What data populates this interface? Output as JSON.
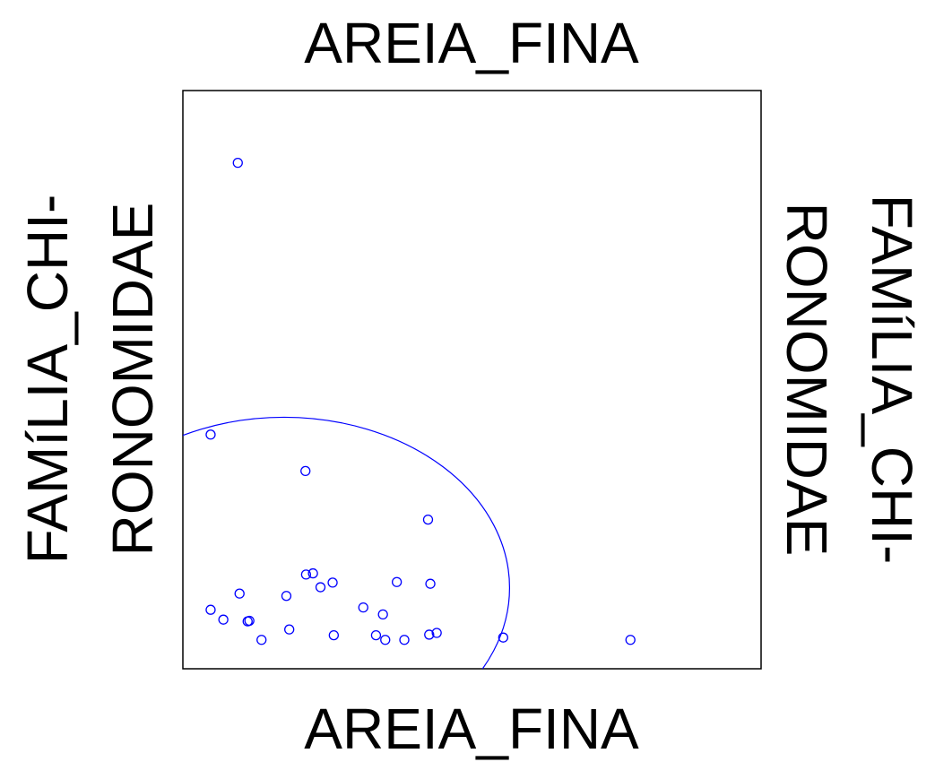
{
  "chart_data": {
    "type": "scatter",
    "title_top": "AREIA_FINA",
    "xlabel": "AREIA_FINA",
    "ylabel_left": [
      "FAMíLIA_CHI-",
      "RONOMIDAE"
    ],
    "ylabel_right": [
      "FAMíLIA_CHI-",
      "RONOMIDAE"
    ],
    "xlim": [
      0,
      1
    ],
    "ylim": [
      0,
      1
    ],
    "axes_ticks": false,
    "grid": false,
    "point_color": "#0000ff",
    "ellipse_color": "#0000ff",
    "points": [
      {
        "x": 0.095,
        "y": 0.875
      },
      {
        "x": 0.048,
        "y": 0.405
      },
      {
        "x": 0.212,
        "y": 0.342
      },
      {
        "x": 0.424,
        "y": 0.258
      },
      {
        "x": 0.213,
        "y": 0.163
      },
      {
        "x": 0.225,
        "y": 0.165
      },
      {
        "x": 0.259,
        "y": 0.149
      },
      {
        "x": 0.238,
        "y": 0.141
      },
      {
        "x": 0.37,
        "y": 0.15
      },
      {
        "x": 0.428,
        "y": 0.147
      },
      {
        "x": 0.098,
        "y": 0.13
      },
      {
        "x": 0.179,
        "y": 0.126
      },
      {
        "x": 0.048,
        "y": 0.102
      },
      {
        "x": 0.07,
        "y": 0.085
      },
      {
        "x": 0.112,
        "y": 0.082
      },
      {
        "x": 0.115,
        "y": 0.083
      },
      {
        "x": 0.312,
        "y": 0.106
      },
      {
        "x": 0.346,
        "y": 0.094
      },
      {
        "x": 0.184,
        "y": 0.068
      },
      {
        "x": 0.136,
        "y": 0.05
      },
      {
        "x": 0.261,
        "y": 0.058
      },
      {
        "x": 0.334,
        "y": 0.058
      },
      {
        "x": 0.35,
        "y": 0.05
      },
      {
        "x": 0.383,
        "y": 0.05
      },
      {
        "x": 0.426,
        "y": 0.059
      },
      {
        "x": 0.439,
        "y": 0.062
      },
      {
        "x": 0.554,
        "y": 0.054
      },
      {
        "x": 0.774,
        "y": 0.05
      }
    ],
    "ellipse": {
      "cx": 0.175,
      "cy": 0.14,
      "rx": 0.39,
      "ry": 0.295
    }
  }
}
